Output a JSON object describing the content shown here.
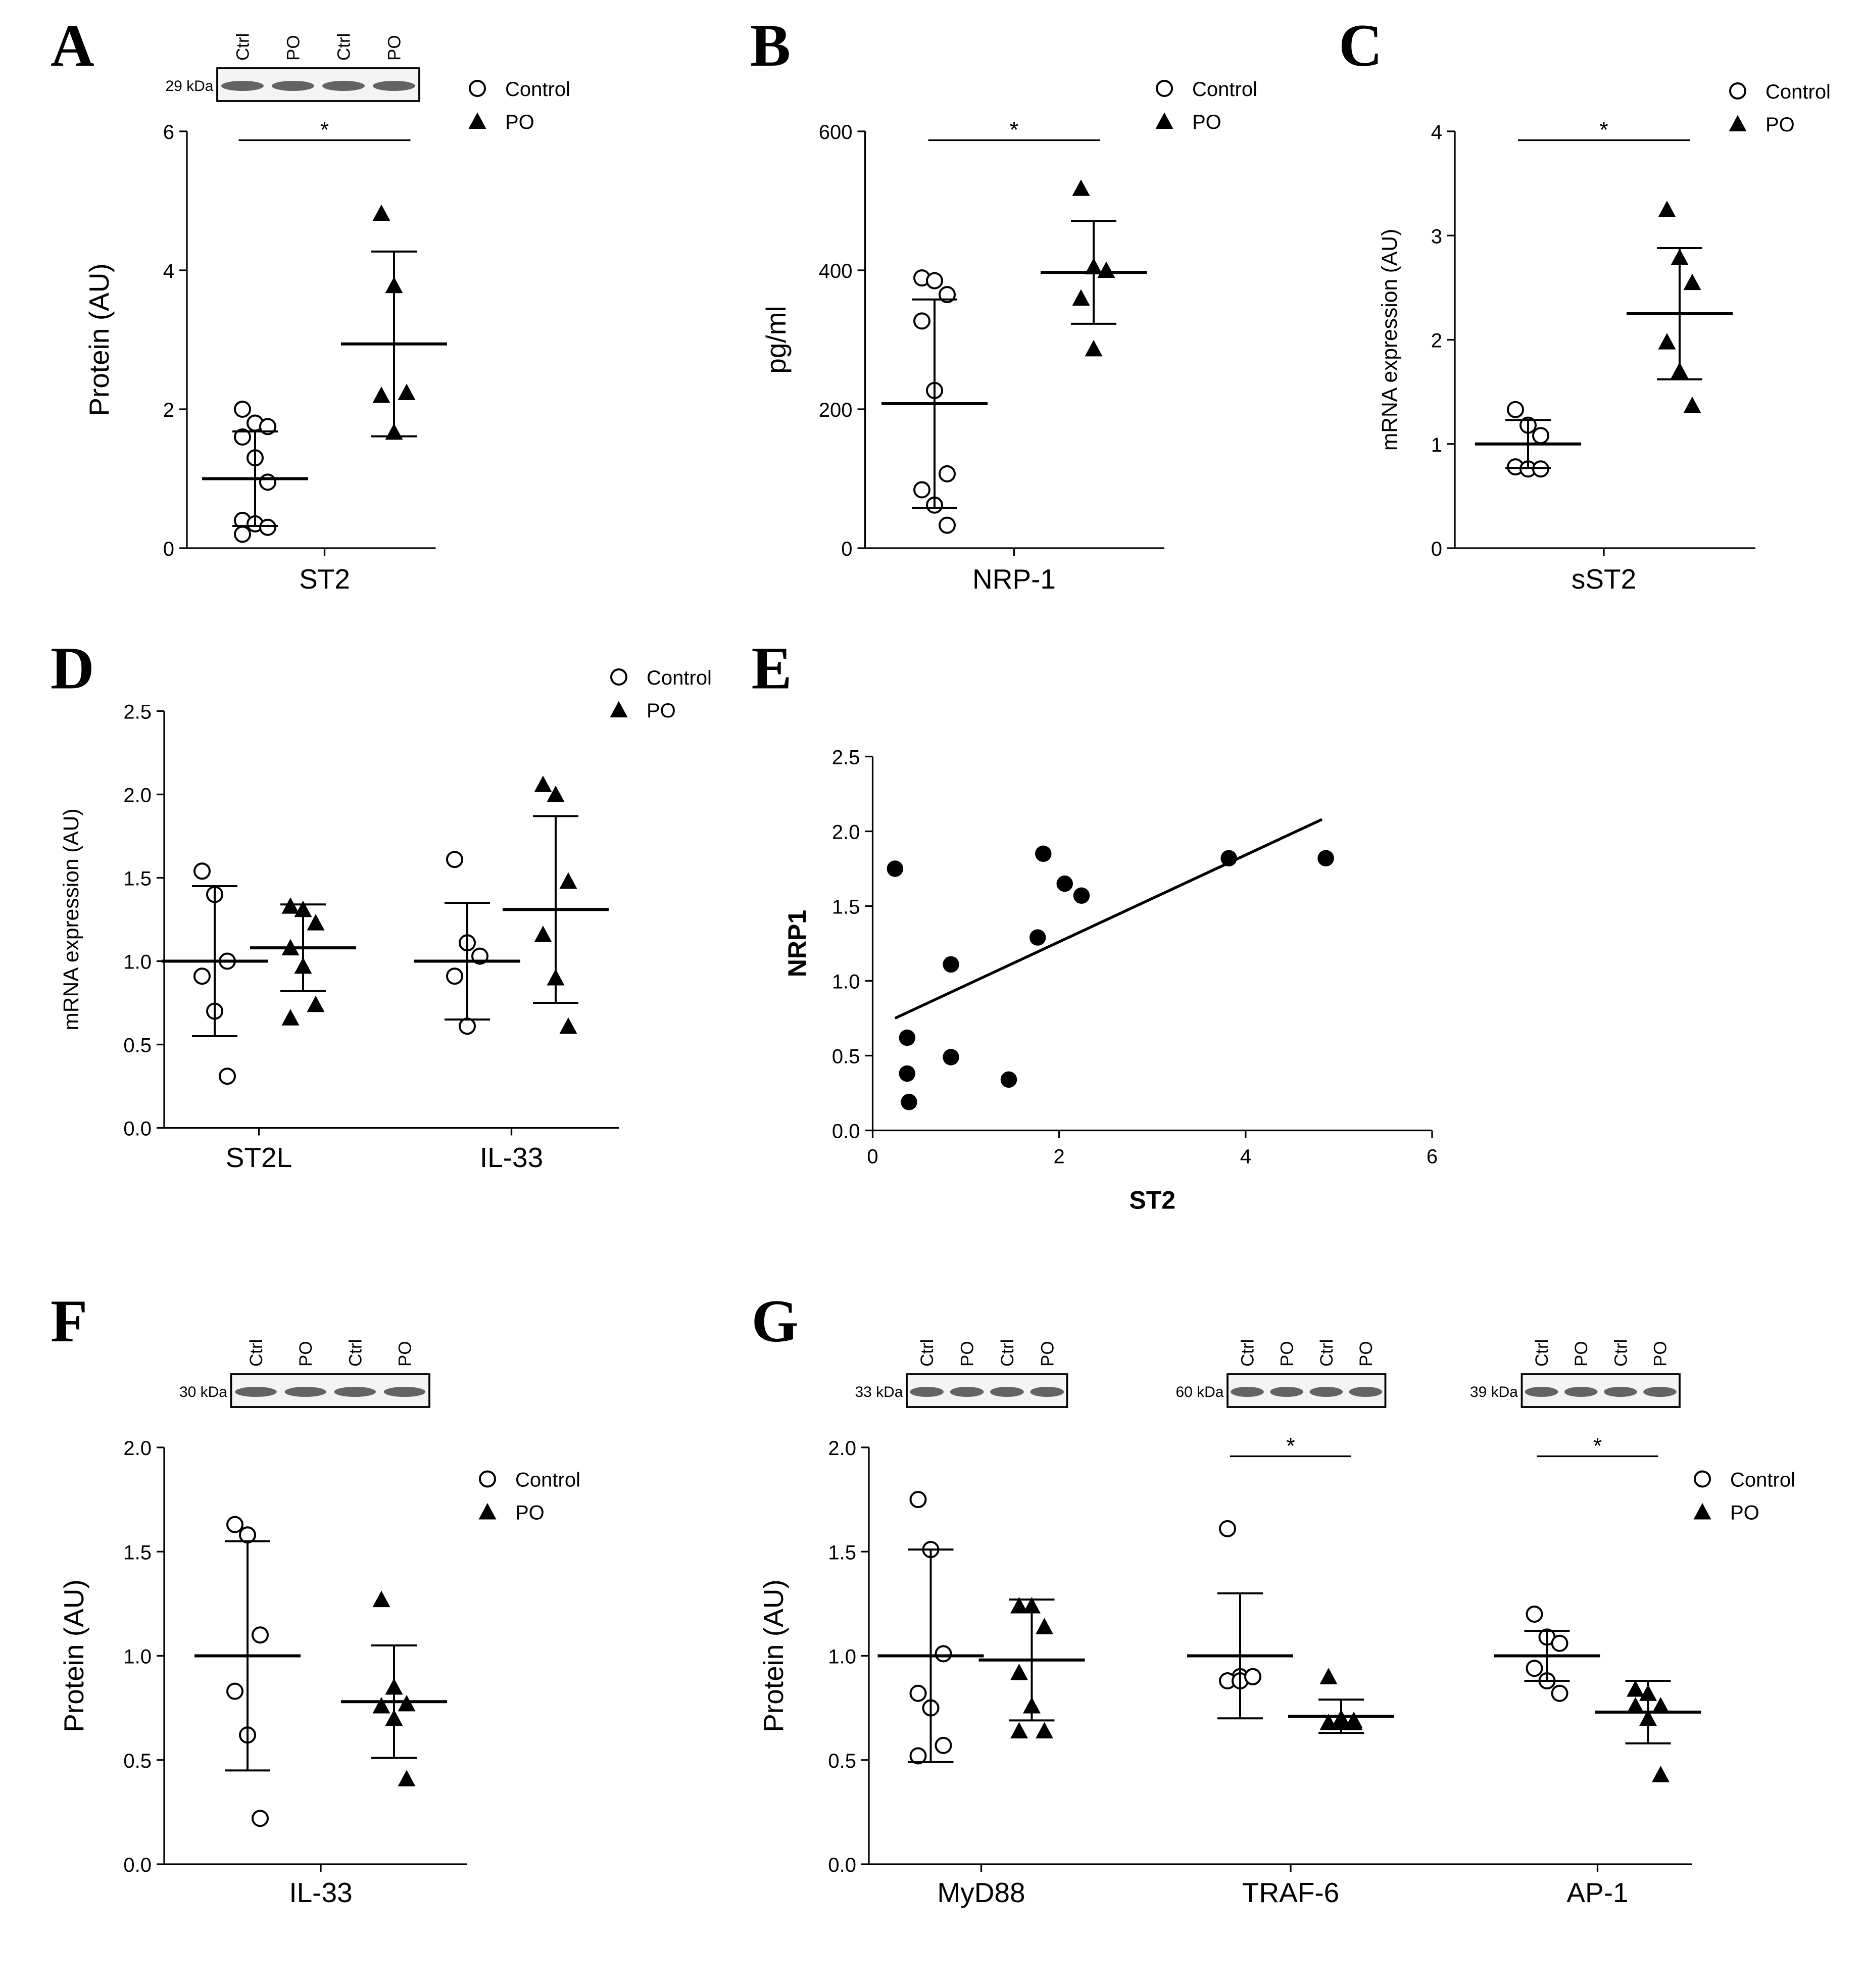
{
  "chart_data": [
    {
      "type": "dotplot",
      "panel": "A",
      "categories": [
        "ST2"
      ],
      "y_label": "Protein (AU)",
      "ylim": [
        0,
        6
      ],
      "yticks": [
        0,
        2,
        4,
        6
      ],
      "significance": [
        "*"
      ],
      "blots": [
        {
          "size_label": "29 kDa",
          "lanes": [
            "Ctrl",
            "PO",
            "Ctrl",
            "PO"
          ]
        }
      ],
      "series": [
        {
          "name": "Control",
          "marker": "open-circle",
          "color": "#000000",
          "values": [
            [
              2.0,
              1.8,
              1.75,
              1.6,
              1.3,
              0.95,
              0.4,
              0.35,
              0.3,
              0.2
            ]
          ],
          "mean": [
            1.0
          ],
          "sd": [
            0.68
          ]
        },
        {
          "name": "PO",
          "marker": "filled-triangle",
          "color": "#000000",
          "values": [
            [
              4.82,
              3.78,
              2.24,
              2.2,
              1.67
            ]
          ],
          "mean": [
            2.94
          ],
          "sd": [
            1.33
          ]
        }
      ]
    },
    {
      "type": "dotplot",
      "panel": "B",
      "categories": [
        "NRP-1"
      ],
      "y_label": "pg/ml",
      "ylim": [
        0,
        600
      ],
      "yticks": [
        0,
        200,
        400,
        600
      ],
      "significance": [
        "*"
      ],
      "series": [
        {
          "name": "Control",
          "marker": "open-circle",
          "color": "#000000",
          "values": [
            [
              389,
              385,
              365,
              327,
              227,
              107,
              84,
              62,
              33
            ]
          ],
          "mean": [
            208
          ],
          "sd": [
            150
          ]
        },
        {
          "name": "PO",
          "marker": "filled-triangle",
          "color": "#000000",
          "values": [
            [
              518,
              405,
              400,
              360,
              287
            ]
          ],
          "mean": [
            397
          ],
          "sd": [
            74
          ]
        }
      ]
    },
    {
      "type": "dotplot",
      "panel": "C",
      "categories": [
        "sST2"
      ],
      "y_label": "mRNA expression (AU)",
      "ylim": [
        0,
        4
      ],
      "yticks": [
        0,
        1,
        2,
        3,
        4
      ],
      "significance": [
        "*"
      ],
      "series": [
        {
          "name": "Control",
          "marker": "open-circle",
          "color": "#000000",
          "values": [
            [
              1.33,
              1.18,
              1.08,
              0.78,
              0.76,
              0.76
            ]
          ],
          "mean": [
            1.0
          ],
          "sd": [
            0.23
          ]
        },
        {
          "name": "PO",
          "marker": "filled-triangle",
          "color": "#000000",
          "values": [
            [
              3.25,
              2.79,
              2.55,
              1.98,
              1.7,
              1.37
            ]
          ],
          "mean": [
            2.25
          ],
          "sd": [
            0.63
          ]
        }
      ]
    },
    {
      "type": "dotplot",
      "panel": "D",
      "categories": [
        "ST2L",
        "IL-33"
      ],
      "y_label": "mRNA expression (AU)",
      "ylim": [
        0,
        2.5
      ],
      "yticks": [
        {
          "value": 0,
          "label": "0.0"
        },
        0.5,
        {
          "value": 1,
          "label": "1.0"
        },
        1.5,
        {
          "value": 2,
          "label": "2.0"
        },
        2.5
      ],
      "series": [
        {
          "name": "Control",
          "marker": "open-circle",
          "color": "#000000",
          "values": [
            [
              1.54,
              1.4,
              1.0,
              0.91,
              0.7,
              0.31
            ],
            [
              1.61,
              1.11,
              1.03,
              0.91,
              0.61
            ]
          ],
          "mean": [
            1.0,
            1.0
          ],
          "sd": [
            0.45,
            0.35
          ]
        },
        {
          "name": "PO",
          "marker": "filled-triangle",
          "color": "#000000",
          "values": [
            [
              1.33,
              1.31,
              1.23,
              1.08,
              0.97,
              0.74,
              0.66
            ],
            [
              2.06,
              2.0,
              1.48,
              1.16,
              0.9,
              0.61
            ]
          ],
          "mean": [
            1.08,
            1.31
          ],
          "sd": [
            0.26,
            0.56
          ]
        }
      ]
    },
    {
      "type": "scatter",
      "panel": "E",
      "x_label": "ST2",
      "y_label": "NRP1",
      "xlim": [
        0,
        6
      ],
      "xticks": [
        0,
        2,
        4,
        6
      ],
      "ylim": [
        0,
        2.5
      ],
      "yticks": [
        {
          "value": 0,
          "label": "0.0"
        },
        0.5,
        {
          "value": 1,
          "label": "1.0"
        },
        1.5,
        {
          "value": 2,
          "label": "2.0"
        },
        2.5
      ],
      "color": "#000000",
      "x": [
        0.24,
        0.37,
        0.37,
        0.39,
        0.84,
        0.84,
        1.46,
        1.77,
        1.83,
        2.06,
        2.24,
        3.82,
        4.86
      ],
      "values": [
        1.75,
        0.62,
        0.38,
        0.19,
        1.11,
        0.49,
        0.34,
        1.29,
        1.85,
        1.65,
        1.57,
        1.82,
        1.82
      ],
      "fit": {
        "x": [
          0.24,
          4.82
        ],
        "y": [
          0.75,
          2.08
        ]
      }
    },
    {
      "type": "dotplot",
      "panel": "F",
      "categories": [
        "IL-33"
      ],
      "y_label": "Protein (AU)",
      "ylim": [
        0,
        2
      ],
      "yticks": [
        {
          "value": 0,
          "label": "0.0"
        },
        0.5,
        {
          "value": 1,
          "label": "1.0"
        },
        1.5,
        {
          "value": 2,
          "label": "2.0"
        }
      ],
      "blots": [
        {
          "size_label": "30 kDa",
          "lanes": [
            "Ctrl",
            "PO",
            "Ctrl",
            "PO"
          ]
        }
      ],
      "series": [
        {
          "name": "Control",
          "marker": "open-circle",
          "color": "#000000",
          "values": [
            [
              1.63,
              1.58,
              1.1,
              0.83,
              0.62,
              0.22
            ]
          ],
          "mean": [
            1.0
          ],
          "sd": [
            0.55
          ]
        },
        {
          "name": "PO",
          "marker": "filled-triangle",
          "color": "#000000",
          "values": [
            [
              1.27,
              0.85,
              0.77,
              0.76,
              0.7,
              0.41
            ]
          ],
          "mean": [
            0.78
          ],
          "sd": [
            0.27
          ]
        }
      ]
    },
    {
      "type": "dotplot",
      "panel": "G",
      "categories": [
        "MyD88",
        "TRAF-6",
        "AP-1"
      ],
      "y_label": "Protein (AU)",
      "ylim": [
        0,
        2
      ],
      "yticks": [
        {
          "value": 0,
          "label": "0.0"
        },
        0.5,
        {
          "value": 1,
          "label": "1.0"
        },
        1.5,
        {
          "value": 2,
          "label": "2.0"
        }
      ],
      "significance": [
        null,
        "*",
        "*"
      ],
      "blots": [
        {
          "size_label": "33 kDa",
          "lanes": [
            "Ctrl",
            "PO",
            "Ctrl",
            "PO"
          ]
        },
        {
          "size_label": "60 kDa",
          "lanes": [
            "Ctrl",
            "PO",
            "Ctrl",
            "PO"
          ]
        },
        {
          "size_label": "39 kDa",
          "lanes": [
            "Ctrl",
            "PO",
            "Ctrl",
            "PO"
          ]
        }
      ],
      "series": [
        {
          "name": "Control",
          "marker": "open-circle",
          "color": "#000000",
          "values": [
            [
              1.75,
              1.51,
              1.01,
              0.82,
              0.75,
              0.57,
              0.52
            ],
            [
              1.61,
              0.9,
              0.9,
              0.88,
              0.88,
              0.9
            ],
            [
              1.2,
              1.09,
              1.06,
              0.94,
              0.88,
              0.82
            ]
          ],
          "mean": [
            1.0,
            1.0,
            1.0
          ],
          "sd": [
            0.51,
            0.3,
            0.12
          ]
        },
        {
          "name": "PO",
          "marker": "filled-triangle",
          "color": "#000000",
          "values": [
            [
              1.24,
              1.24,
              1.14,
              0.92,
              0.76,
              0.64,
              0.64
            ],
            [
              0.9,
              0.7,
              0.69,
              0.68,
              0.68,
              0.68
            ],
            [
              0.84,
              0.82,
              0.76,
              0.76,
              0.7,
              0.43
            ]
          ],
          "mean": [
            0.98,
            0.71,
            0.73
          ],
          "sd": [
            0.29,
            0.08,
            0.15
          ]
        }
      ]
    }
  ]
}
